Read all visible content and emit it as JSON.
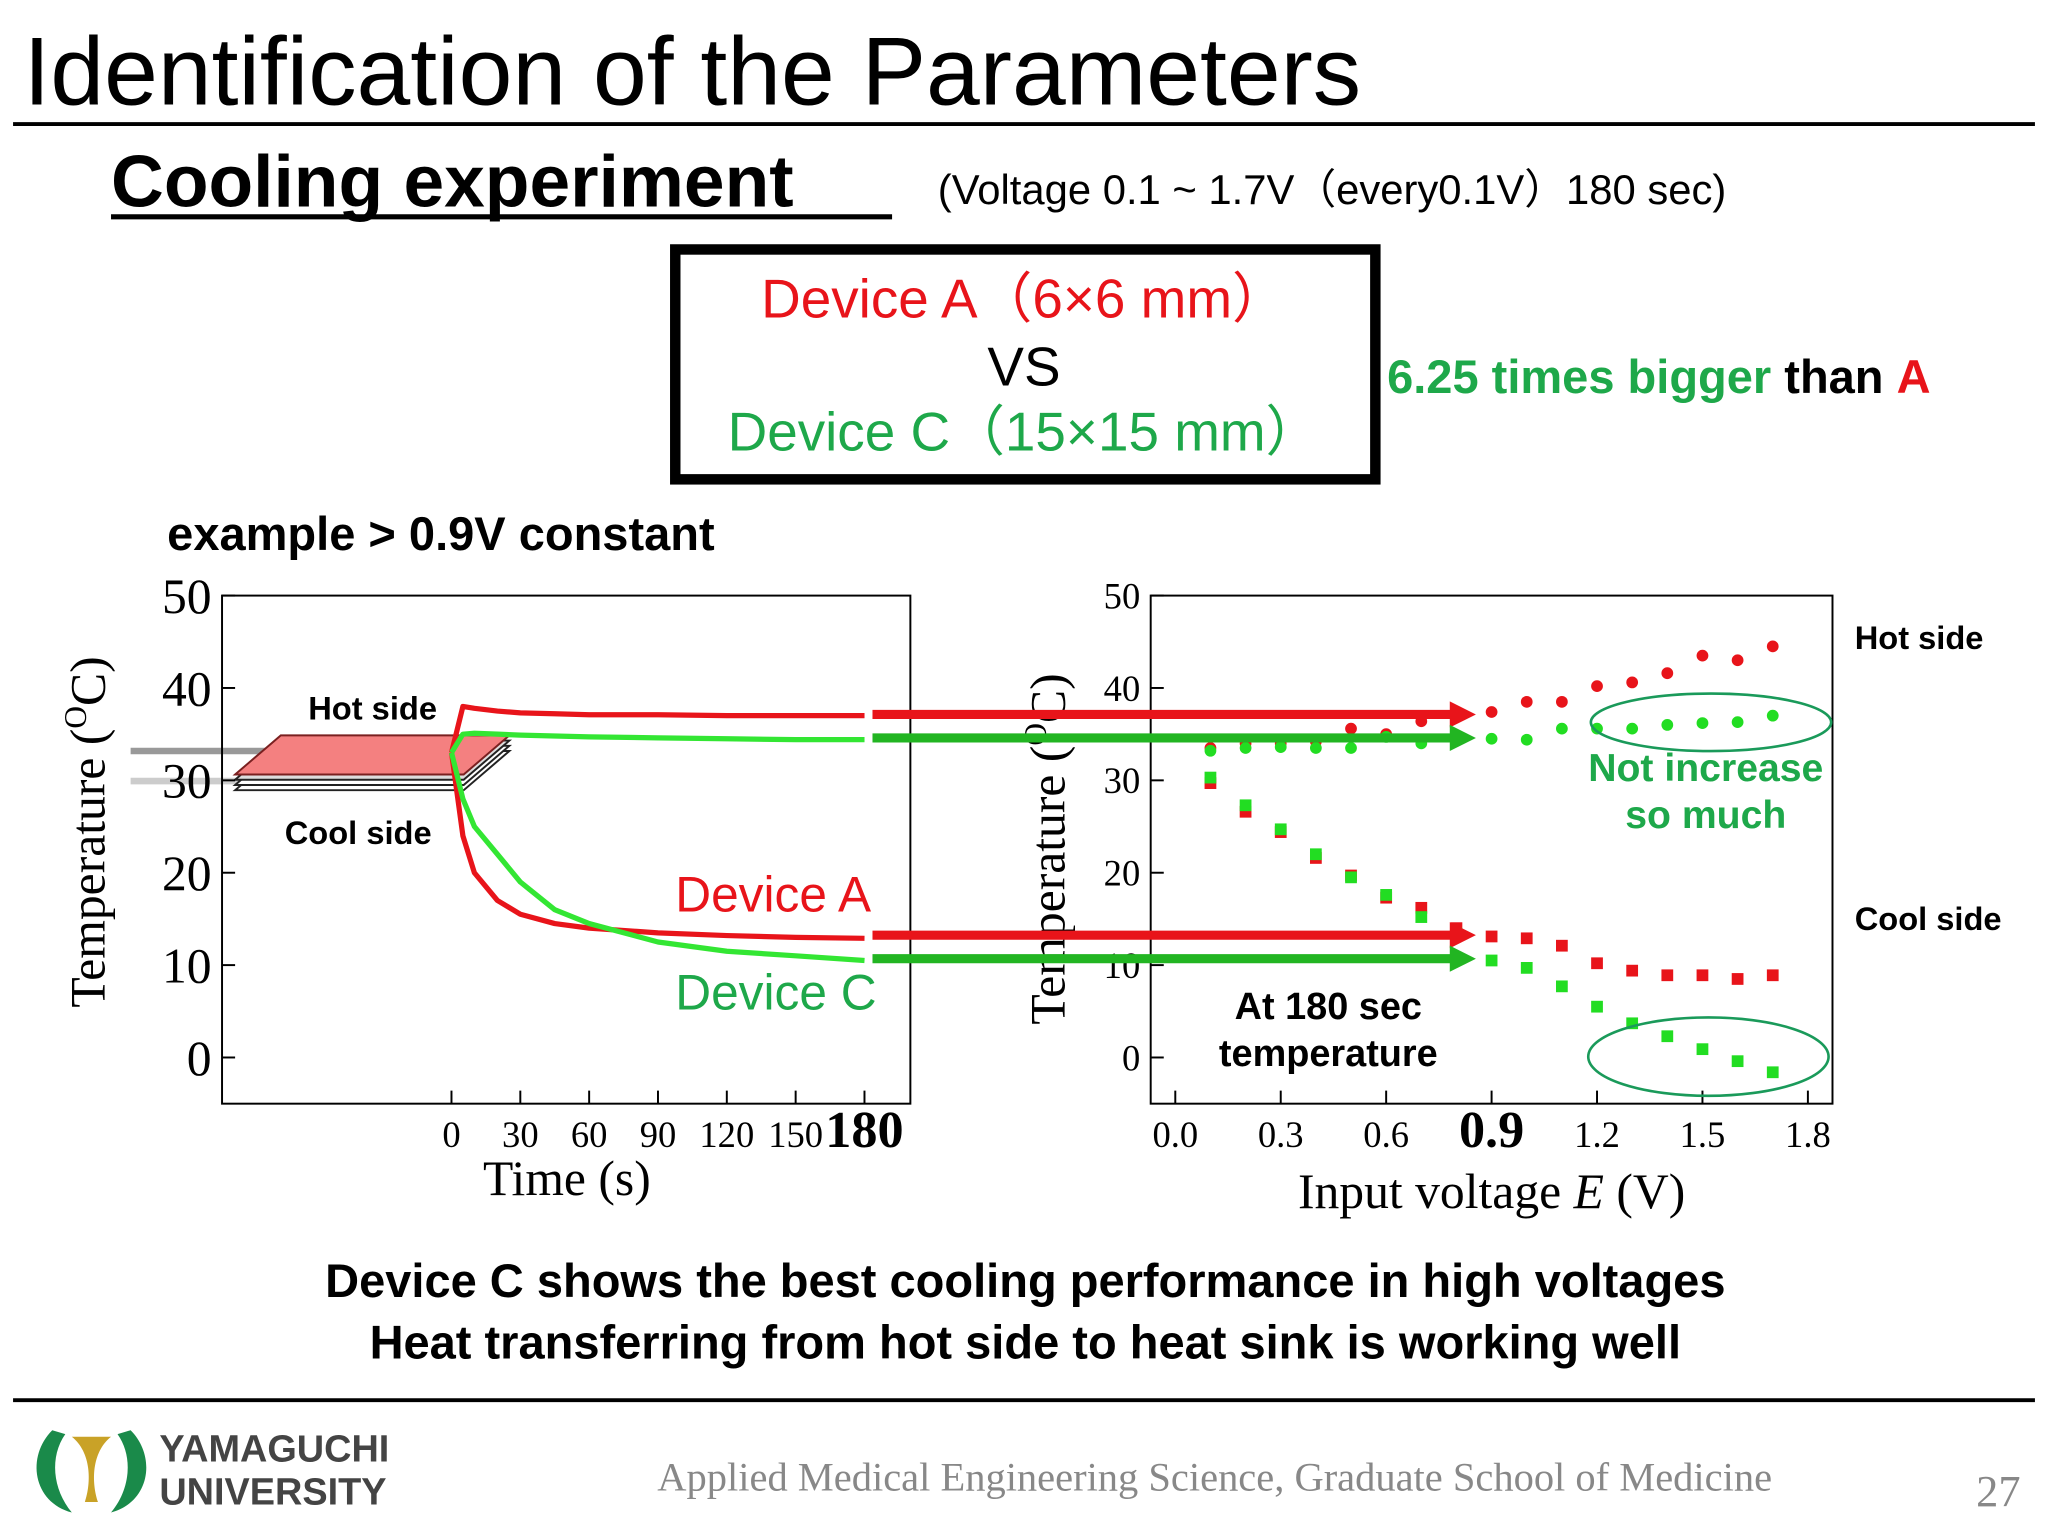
{
  "header": {
    "title": "Identification of the Parameters",
    "subtitle": "Cooling experiment",
    "conditions": "(Voltage 0.1 ~ 1.7V（every0.1V）180 sec)"
  },
  "comparison": {
    "line1": "Device A（6×6 mm）",
    "line2": "VS",
    "line3": "Device C（15×15 mm）",
    "note_part1": "6.25 times bigger",
    "note_part2": " than ",
    "note_part3": "A"
  },
  "example": "example > 0.9V constant",
  "chart_data": [
    {
      "type": "line",
      "x_label": "Time (s)",
      "y_label_part1": "Temperature (",
      "y_label_sup": "O",
      "y_label_part2": "C)",
      "x": [
        0,
        5,
        10,
        20,
        30,
        45,
        60,
        90,
        120,
        150,
        180
      ],
      "series": [
        {
          "name": "Device A",
          "color": "#e8141a",
          "hot": [
            33,
            38,
            37.8,
            37.5,
            37.3,
            37.2,
            37.1,
            37.1,
            37,
            37,
            37
          ],
          "cool": [
            33,
            24,
            20,
            17,
            15.5,
            14.5,
            14,
            13.5,
            13.2,
            13,
            12.9
          ]
        },
        {
          "name": "Device C",
          "color": "#33e633",
          "hot": [
            33,
            35,
            35.1,
            35,
            34.9,
            34.8,
            34.7,
            34.6,
            34.5,
            34.4,
            34.4
          ],
          "cool": [
            33,
            28,
            25,
            22,
            19,
            16,
            14.5,
            12.5,
            11.5,
            11,
            10.5
          ]
        }
      ],
      "annotations": {
        "hot": "Hot side",
        "cool": "Cool side"
      },
      "xlim": [
        -100,
        200
      ],
      "xticks": [
        0,
        30,
        60,
        90,
        120,
        150,
        180
      ],
      "ylim": [
        -5,
        50
      ],
      "yticks": [
        0,
        10,
        20,
        30,
        40,
        50
      ]
    },
    {
      "type": "scatter",
      "x_label_part1": "Input voltage ",
      "x_label_var": "E",
      "x_label_part2": " (V)",
      "y_label_part1": "Temperature (",
      "y_label_sup": "O",
      "y_label_part2": "C)",
      "x": [
        0.1,
        0.2,
        0.3,
        0.4,
        0.5,
        0.6,
        0.7,
        0.8,
        0.9,
        1.0,
        1.1,
        1.2,
        1.3,
        1.4,
        1.5,
        1.6,
        1.7
      ],
      "series": [
        {
          "color": "#e8141a",
          "hot": [
            33.5,
            34,
            34,
            34.2,
            35.6,
            35,
            36.4,
            37.4,
            37.4,
            38.5,
            38.5,
            40.2,
            40.6,
            41.6,
            43.5,
            43,
            44.5
          ],
          "cool": [
            29.7,
            26.6,
            24.4,
            21.6,
            19.7,
            17.3,
            16.2,
            14,
            13.1,
            12.9,
            12.1,
            10.2,
            9.4,
            8.9,
            8.9,
            8.5,
            8.9
          ]
        },
        {
          "color": "#22dd22",
          "hot": [
            33.2,
            33.5,
            33.6,
            33.5,
            33.5,
            34.7,
            34,
            34.5,
            34.5,
            34.4,
            35.6,
            35.6,
            35.6,
            36,
            36.2,
            36.3,
            37
          ],
          "cool": [
            30.3,
            27.3,
            24.7,
            22,
            19.5,
            17.6,
            15.2,
            13.4,
            10.5,
            9.7,
            7.7,
            5.5,
            3.7,
            2.3,
            0.9,
            -0.4,
            -1.6
          ]
        }
      ],
      "annotations": {
        "hot": "Hot side",
        "cool": "Cool side",
        "note1_line1": "Not increase",
        "note1_line2": "so much",
        "note2_line1": "At 180 sec",
        "note2_line2": "temperature"
      },
      "xlim": [
        -0.07,
        1.87
      ],
      "xticks": [
        {
          "value": 0,
          "label": "0.0"
        },
        {
          "value": 0.3,
          "label": "0.3"
        },
        {
          "value": 0.6,
          "label": "0.6"
        },
        {
          "value": 0.9,
          "label": "0.9"
        },
        {
          "value": 1.2,
          "label": "1.2"
        },
        {
          "value": 1.5,
          "label": "1.5"
        },
        {
          "value": 1.8,
          "label": "1.8"
        }
      ],
      "ylim": [
        -5,
        50
      ],
      "yticks": [
        0,
        10,
        20,
        30,
        40,
        50
      ]
    }
  ],
  "conclusion": {
    "line1": "Device C shows the best cooling performance in high voltages",
    "line2": "Heat transferring from hot side to heat sink is working well"
  },
  "footer": {
    "logo_line1": "YAMAGUCHI",
    "logo_line2": "UNIVERSITY",
    "department": "Applied Medical Engineering Science, Graduate School of Medicine",
    "page": "27"
  }
}
